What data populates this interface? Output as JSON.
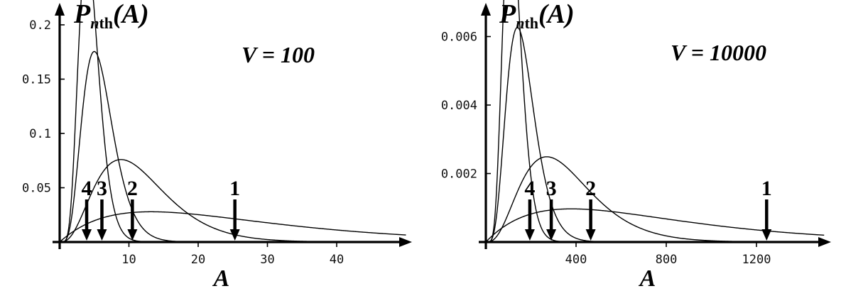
{
  "chart_data": [
    {
      "type": "line",
      "title": "",
      "ylabel_base": "P",
      "ylabel_sub": "n",
      "ylabel_sub2": "th",
      "ylabel_arg": "(A)",
      "xlabel": "A",
      "annotation": "V = 100",
      "xlim": [
        0,
        50
      ],
      "ylim": [
        0,
        0.21
      ],
      "x_ticks": [
        10,
        20,
        30,
        40
      ],
      "x_tick_labels": [
        "10",
        "20",
        "30",
        "40"
      ],
      "y_ticks": [
        0.05,
        0.1,
        0.15,
        0.2
      ],
      "y_tick_labels": [
        "0.05",
        "0.1",
        "0.15",
        "0.2"
      ],
      "grid": false,
      "series": [
        {
          "n": 1,
          "k": 2,
          "theta": 13.2
        },
        {
          "n": 2,
          "k": 4,
          "theta": 2.95
        },
        {
          "n": 3,
          "k": 6,
          "theta": 1.0
        },
        {
          "n": 4,
          "k": 8,
          "theta": 0.56
        }
      ],
      "arrows": [
        {
          "label": "4",
          "x": 3.9
        },
        {
          "label": "3",
          "x": 6.1
        },
        {
          "label": "2",
          "x": 10.5
        },
        {
          "label": "1",
          "x": 25.3
        }
      ]
    },
    {
      "type": "line",
      "title": "",
      "ylabel_base": "P",
      "ylabel_sub": "n",
      "ylabel_sub2": "th",
      "ylabel_arg": "(A)",
      "xlabel": "A",
      "annotation": "V = 10000",
      "xlim": [
        0,
        1500
      ],
      "ylim": [
        0,
        0.0063
      ],
      "x_ticks": [
        400,
        800,
        1200
      ],
      "x_tick_labels": [
        "400",
        "800",
        "1200"
      ],
      "y_ticks": [
        0.002,
        0.004,
        0.006
      ],
      "y_tick_labels": [
        "0.002",
        "0.004",
        "0.006"
      ],
      "grid": false,
      "series": [
        {
          "n": 1,
          "k": 2,
          "theta": 380
        },
        {
          "n": 2,
          "k": 4,
          "theta": 90
        },
        {
          "n": 3,
          "k": 6,
          "theta": 28
        },
        {
          "n": 4,
          "k": 8,
          "theta": 15.5
        }
      ],
      "arrows": [
        {
          "label": "4",
          "x": 195
        },
        {
          "label": "3",
          "x": 290
        },
        {
          "label": "2",
          "x": 465
        },
        {
          "label": "1",
          "x": 1245
        }
      ]
    }
  ]
}
